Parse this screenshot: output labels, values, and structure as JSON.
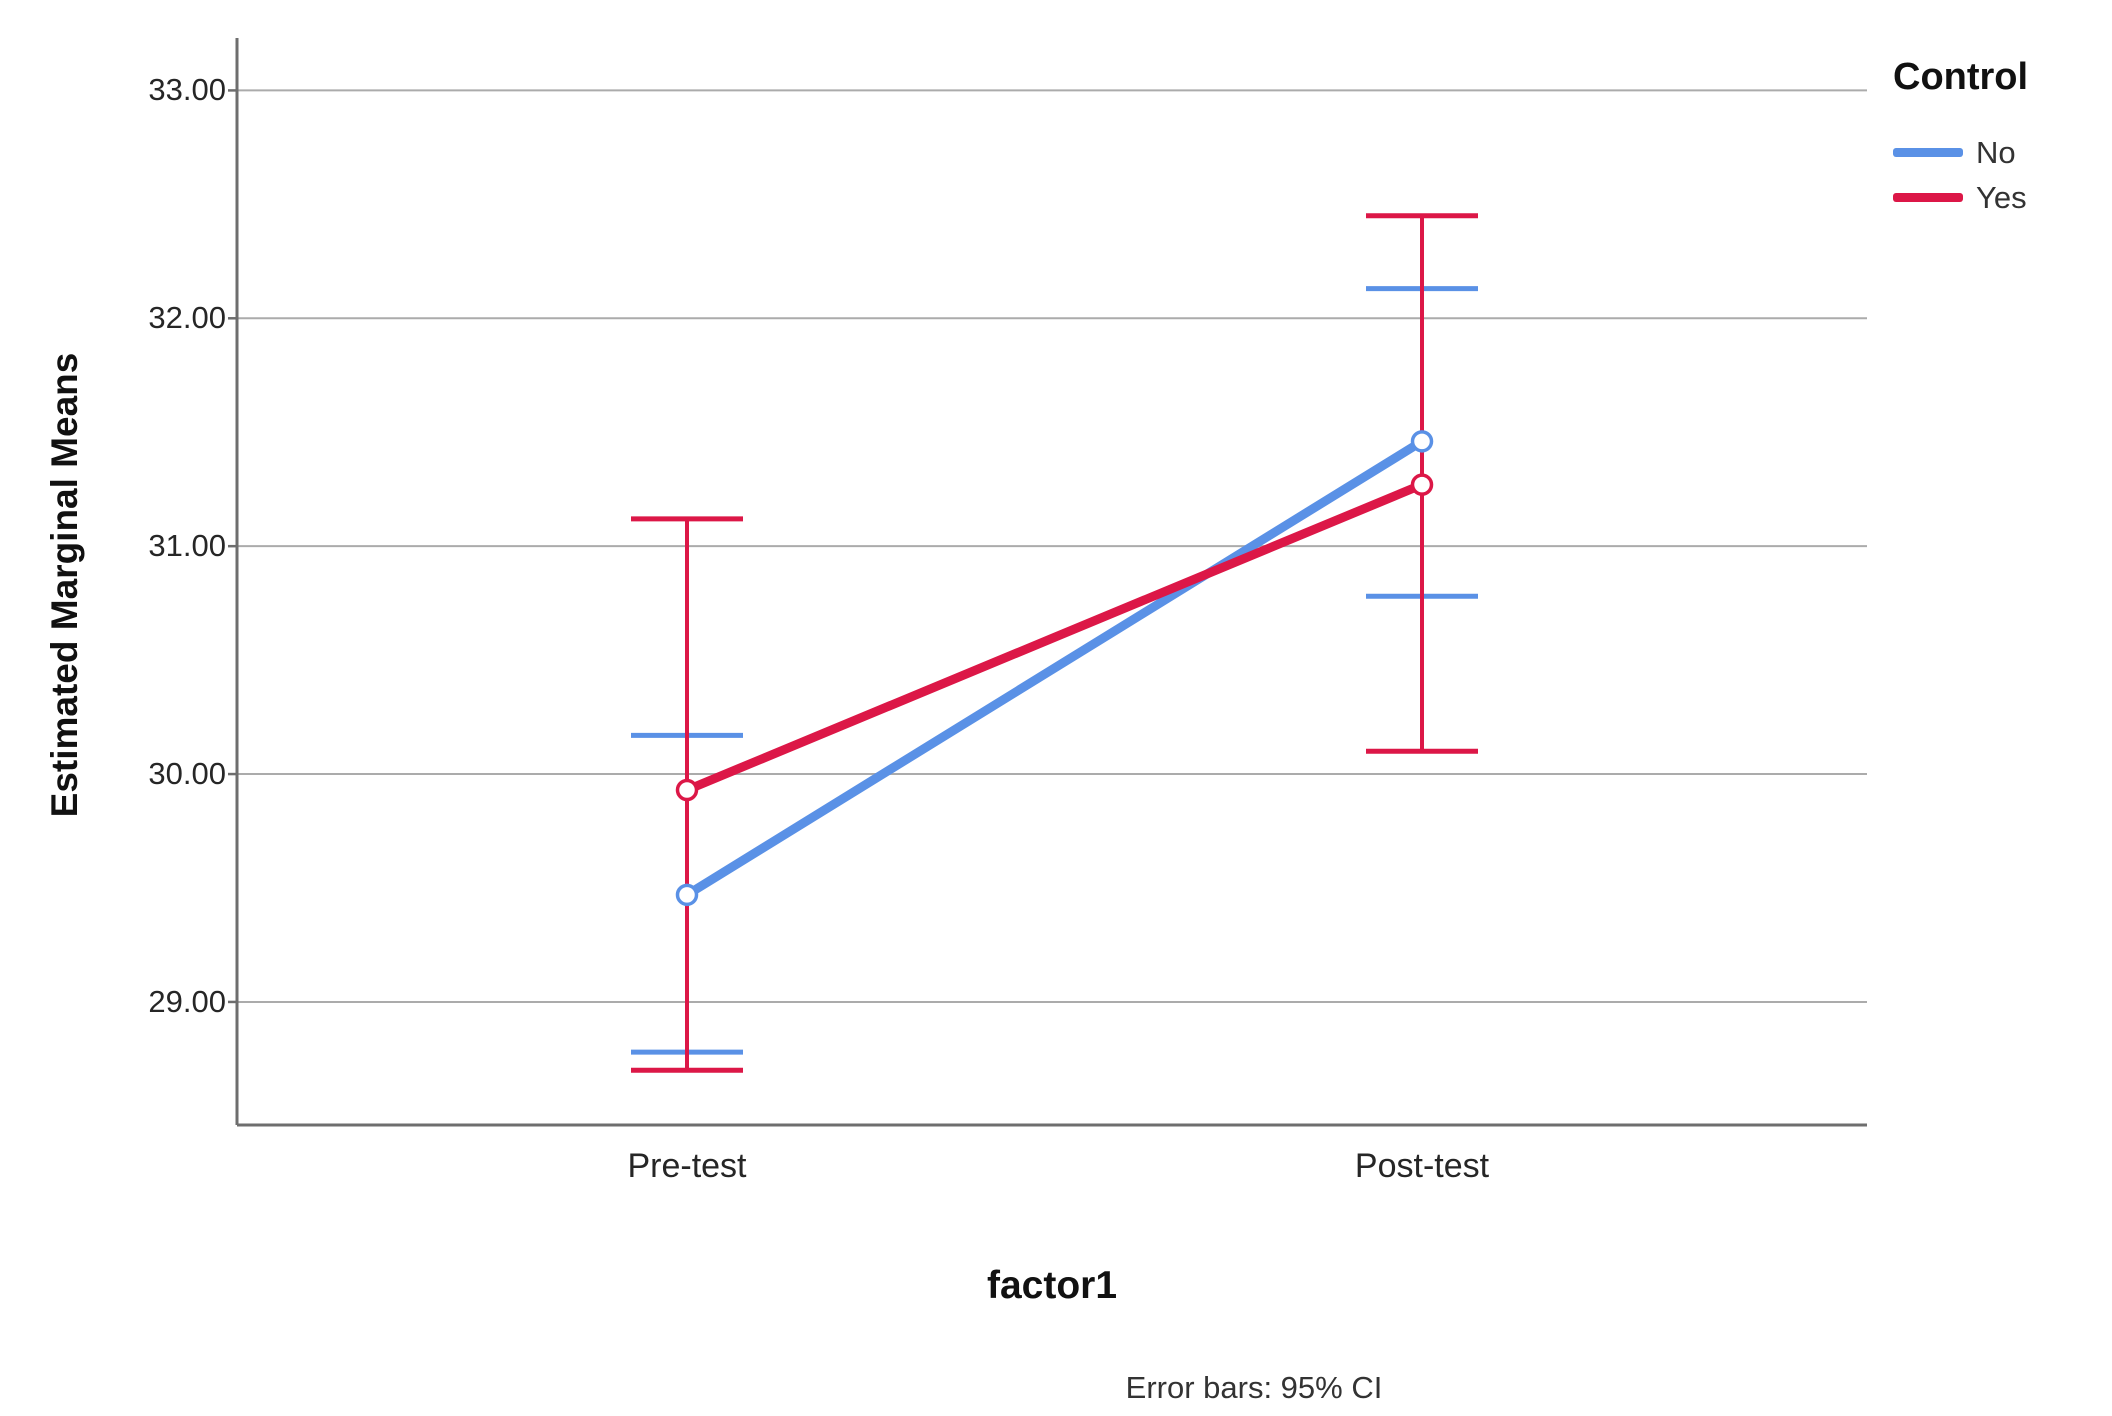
{
  "figure": {
    "footnote": "Error bars: 95% CI"
  },
  "chart_data": {
    "type": "line",
    "title": "",
    "xlabel": "factor1",
    "ylabel": "Estimated Marginal Means",
    "categories": [
      "Pre-test",
      "Post-test"
    ],
    "yticks": [
      {
        "value": 33,
        "label": "33.00"
      },
      {
        "value": 32,
        "label": "32.00"
      },
      {
        "value": 31,
        "label": "31.00"
      },
      {
        "value": 30,
        "label": "30.00"
      },
      {
        "value": 29,
        "label": "29.00"
      }
    ],
    "ylim": [
      28.46,
      33.23
    ],
    "grid": "horizontal-gridlines",
    "grid_color": "#ABABAB",
    "axis_color": "#6E6E6E",
    "error_bars": "95% CI",
    "legend": {
      "title": "Control",
      "position": "top-right",
      "items": [
        {
          "label": "No",
          "color": "#5A91E6"
        },
        {
          "label": "Yes",
          "color": "#DC1747"
        }
      ]
    },
    "series": [
      {
        "name": "No",
        "color": "#5A91E6",
        "values": [
          29.47,
          31.46
        ],
        "ci_low": [
          28.78,
          30.78
        ],
        "ci_high": [
          30.17,
          32.13
        ]
      },
      {
        "name": "Yes",
        "color": "#DC1747",
        "values": [
          29.93,
          31.27
        ],
        "ci_low": [
          28.7,
          30.1
        ],
        "ci_high": [
          31.12,
          32.45
        ]
      }
    ]
  }
}
